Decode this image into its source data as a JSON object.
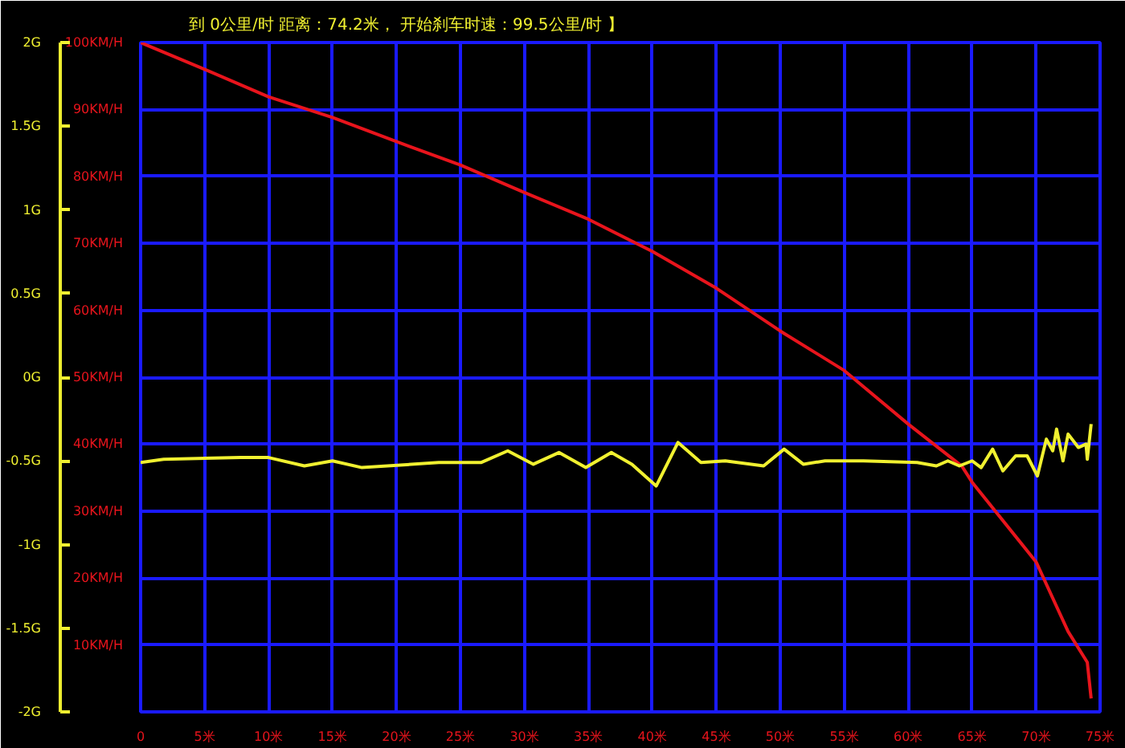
{
  "chart_data": {
    "type": "line",
    "title": "到 0公里/时 距离：74.2米， 开始刹车时速：99.5公里/时 】",
    "xlim": [
      0,
      75
    ],
    "xticks": [
      0,
      {
        "value": 5,
        "label": "5米"
      },
      {
        "value": 10,
        "label": "10米"
      },
      {
        "value": 15,
        "label": "15米"
      },
      {
        "value": 20,
        "label": "20米"
      },
      {
        "value": 25,
        "label": "25米"
      },
      {
        "value": 30,
        "label": "30米"
      },
      {
        "value": 35,
        "label": "35米"
      },
      {
        "value": 40,
        "label": "40米"
      },
      {
        "value": 45,
        "label": "45米"
      },
      {
        "value": 50,
        "label": "50米"
      },
      {
        "value": 55,
        "label": "55米"
      },
      {
        "value": 60,
        "label": "60米"
      },
      {
        "value": 65,
        "label": "65米"
      },
      {
        "value": 70,
        "label": "70米"
      },
      {
        "value": 75,
        "label": "75米"
      }
    ],
    "ylim": [
      0,
      100
    ],
    "yticks": [
      {
        "value": 10,
        "label": "10KM/H"
      },
      {
        "value": 20,
        "label": "20KM/H"
      },
      {
        "value": 30,
        "label": "30KM/H"
      },
      {
        "value": 40,
        "label": "40KM/H"
      },
      {
        "value": 50,
        "label": "50KM/H"
      },
      {
        "value": 60,
        "label": "60KM/H"
      },
      {
        "value": 70,
        "label": "70KM/H"
      },
      {
        "value": 80,
        "label": "80KM/H"
      },
      {
        "value": 90,
        "label": "90KM/H"
      },
      {
        "value": 100,
        "label": "100KM/H"
      }
    ],
    "y2lim": [
      -2,
      2
    ],
    "y2ticks": [
      {
        "value": 2,
        "label": "2G"
      },
      {
        "value": 1.5,
        "label": "1.5G"
      },
      {
        "value": 1,
        "label": "1G"
      },
      {
        "value": 0.5,
        "label": "0.5G"
      },
      {
        "value": 0,
        "label": "0G"
      },
      {
        "value": -0.5,
        "label": "-0.5G"
      },
      {
        "value": -1,
        "label": "-1G"
      },
      {
        "value": -1.5,
        "label": "-1.5G"
      },
      {
        "value": -2,
        "label": "-2G"
      }
    ],
    "grid": true,
    "marker": "none",
    "line_style": "solid",
    "series": [
      {
        "color": "#e8141c",
        "x": [
          0,
          5,
          10,
          15,
          20,
          25,
          30,
          35,
          40,
          45,
          50,
          55,
          60,
          64.2,
          65,
          70,
          72.5,
          74,
          74.3
        ],
        "values": [
          100,
          96,
          91.9,
          88.8,
          85.2,
          81.7,
          77.6,
          73.6,
          68.8,
          63.3,
          56.9,
          51,
          43,
          36.7,
          34.3,
          22.4,
          12,
          7.4,
          2
        ]
      },
      {
        "color": "#f0f030",
        "axis": "y2",
        "x": [
          0,
          1.8,
          7.8,
          10,
          12.8,
          15,
          17.3,
          23.3,
          26.6,
          28.7,
          30.7,
          32.7,
          34.8,
          36.8,
          38.4,
          40.3,
          42,
          43.8,
          45.7,
          48.7,
          50.3,
          51.8,
          53.5,
          56.5,
          60.7,
          62.2,
          63.1,
          64,
          65,
          65.7,
          66.6,
          67.4,
          68.4,
          69.3,
          70.1,
          70.8,
          71.3,
          71.6,
          72.1,
          72.5,
          73.3,
          73.9,
          74,
          74.3
        ],
        "values": [
          -0.51,
          -0.49,
          -0.48,
          -0.48,
          -0.53,
          -0.5,
          -0.54,
          -0.51,
          -0.51,
          -0.44,
          -0.52,
          -0.45,
          -0.54,
          -0.45,
          -0.52,
          -0.65,
          -0.39,
          -0.51,
          -0.5,
          -0.53,
          -0.43,
          -0.52,
          -0.5,
          -0.5,
          -0.51,
          -0.53,
          -0.5,
          -0.53,
          -0.5,
          -0.54,
          -0.43,
          -0.56,
          -0.47,
          -0.47,
          -0.59,
          -0.37,
          -0.44,
          -0.31,
          -0.5,
          -0.34,
          -0.42,
          -0.4,
          -0.49,
          -0.28
        ]
      }
    ]
  }
}
